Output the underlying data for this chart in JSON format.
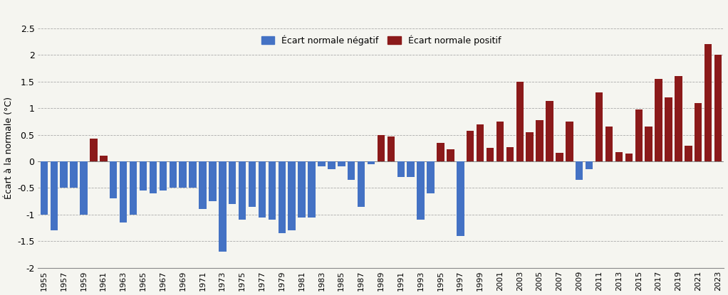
{
  "years": [
    1955,
    1956,
    1957,
    1958,
    1959,
    1960,
    1961,
    1962,
    1963,
    1964,
    1965,
    1966,
    1967,
    1968,
    1969,
    1970,
    1971,
    1972,
    1973,
    1974,
    1975,
    1976,
    1977,
    1978,
    1979,
    1980,
    1981,
    1982,
    1983,
    1984,
    1985,
    1986,
    1987,
    1988,
    1989,
    1990,
    1991,
    1992,
    1993,
    1994,
    1995,
    1996,
    1997,
    1998,
    1999,
    2000,
    2001,
    2002,
    2003,
    2004,
    2005,
    2006,
    2007,
    2008,
    2009,
    2010,
    2011,
    2012,
    2013,
    2014,
    2015,
    2016,
    2017,
    2018,
    2019,
    2020,
    2021,
    2022,
    2023
  ],
  "values": [
    -1.0,
    -1.3,
    -0.5,
    -0.5,
    -1.0,
    0.43,
    0.1,
    -0.7,
    -1.15,
    -1.0,
    -0.55,
    -0.6,
    -0.55,
    -0.5,
    -0.5,
    -0.5,
    -0.9,
    -0.75,
    -1.7,
    -0.8,
    -1.1,
    -0.85,
    -1.05,
    -1.1,
    -1.35,
    -1.3,
    -1.05,
    -1.05,
    -0.1,
    -0.15,
    -0.1,
    -0.35,
    -0.85,
    -0.05,
    0.5,
    0.47,
    -0.3,
    -0.3,
    -1.1,
    -0.6,
    0.35,
    0.23,
    -1.4,
    0.58,
    0.7,
    0.25,
    0.75,
    0.27,
    1.5,
    0.55,
    0.78,
    1.13,
    0.16,
    0.75,
    -0.35,
    -0.15,
    1.3,
    0.65,
    0.17,
    0.15,
    0.97,
    0.65,
    1.55,
    1.2,
    1.6,
    0.3,
    1.1,
    2.2,
    2.0
  ],
  "neg_color": "#4472C4",
  "pos_color": "#8B1A1A",
  "ylabel": "Écart à la normale (°C)",
  "legend_neg": "Écart normale négatif",
  "legend_pos": "Écart normale positif",
  "ylim": [
    -2.0,
    2.5
  ],
  "ytick_vals": [
    -2.0,
    -1.5,
    -1.0,
    -0.5,
    0.0,
    0.5,
    1.0,
    1.5,
    2.0,
    2.5
  ],
  "ytick_labels": [
    "-2",
    "-1.5",
    "-1",
    "-0.5",
    "0",
    "0.5",
    "1",
    "1.5",
    "2",
    "2.5"
  ],
  "grid_color": "#AAAAAA",
  "fig_facecolor": "#F5F5F0"
}
